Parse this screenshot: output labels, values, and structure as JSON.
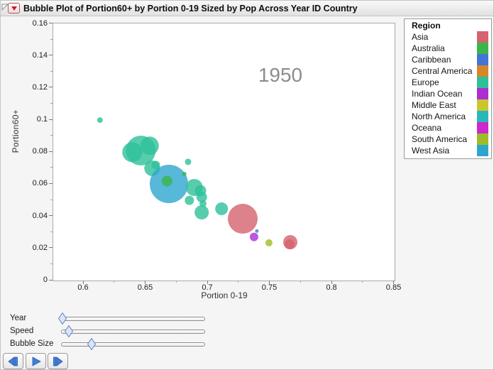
{
  "header": {
    "title": "Bubble Plot of Portion60+ by Portion 0-19 Sized by Pop Across Year ID Country"
  },
  "chart_data": {
    "type": "scatter",
    "subtype": "bubble",
    "frame_label": "1950",
    "xlabel": "Portion 0-19",
    "ylabel": "Portion60+",
    "x_axis": {
      "min": 0.6,
      "max": 0.85,
      "major_values": [
        0.6,
        0.65,
        0.7,
        0.75,
        0.8,
        0.85
      ],
      "major_labels": [
        "0.6",
        "0.65",
        "0.7",
        "0.75",
        "0.8",
        "0.85"
      ],
      "minor_values": [
        0.625,
        0.675,
        0.725,
        0.775,
        0.825
      ]
    },
    "y_axis": {
      "min": 0,
      "max": 0.16,
      "major_values": [
        0,
        0.02,
        0.04,
        0.06,
        0.08,
        0.1,
        0.12,
        0.14,
        0.16
      ],
      "major_labels": [
        "0",
        "0.02",
        "0.04",
        "0.06",
        "0.08",
        "0.1",
        "0.12",
        "0.14",
        "0.16"
      ],
      "minor_values": [
        0.01,
        0.03,
        0.05,
        0.07,
        0.09,
        0.11,
        0.13,
        0.15
      ]
    },
    "bubbles": [
      {
        "region": "Europe",
        "x": 0.613,
        "y": 0.1,
        "r": 4
      },
      {
        "region": "Europe",
        "x": 0.639,
        "y": 0.08,
        "r": 14
      },
      {
        "region": "Europe",
        "x": 0.646,
        "y": 0.081,
        "r": 21
      },
      {
        "region": "Europe",
        "x": 0.653,
        "y": 0.084,
        "r": 13
      },
      {
        "region": "Europe",
        "x": 0.655,
        "y": 0.07,
        "r": 11
      },
      {
        "region": "Europe",
        "x": 0.658,
        "y": 0.072,
        "r": 6
      },
      {
        "region": "Europe",
        "x": 0.684,
        "y": 0.074,
        "r": 4.5
      },
      {
        "region": "West Asia",
        "x": 0.6686,
        "y": 0.0602,
        "r": 27
      },
      {
        "region": "Australia",
        "x": 0.667,
        "y": 0.062,
        "r": 7.5
      },
      {
        "region": "Australia",
        "x": 0.681,
        "y": 0.0664,
        "r": 3
      },
      {
        "region": "Europe",
        "x": 0.689,
        "y": 0.058,
        "r": 12
      },
      {
        "region": "Europe",
        "x": 0.694,
        "y": 0.056,
        "r": 8
      },
      {
        "region": "Europe",
        "x": 0.685,
        "y": 0.05,
        "r": 6.5
      },
      {
        "region": "Europe",
        "x": 0.695,
        "y": 0.052,
        "r": 7.5
      },
      {
        "region": "Europe",
        "x": 0.696,
        "y": 0.048,
        "r": 5
      },
      {
        "region": "Europe",
        "x": 0.695,
        "y": 0.0425,
        "r": 10
      },
      {
        "region": "Europe",
        "x": 0.711,
        "y": 0.0447,
        "r": 9
      },
      {
        "region": "Asia",
        "x": 0.728,
        "y": 0.0385,
        "r": 21
      },
      {
        "region": "Caribbean",
        "x": 0.7394,
        "y": 0.0308,
        "r": 2.5
      },
      {
        "region": "Indian Ocean",
        "x": 0.7371,
        "y": 0.0272,
        "r": 6
      },
      {
        "region": "South America",
        "x": 0.7491,
        "y": 0.0235,
        "r": 5
      },
      {
        "region": "Asia",
        "x": 0.7663,
        "y": 0.0239,
        "r": 10
      },
      {
        "region": "Asia",
        "x": 0.7657,
        "y": 0.0226,
        "r": 7
      }
    ]
  },
  "legend": {
    "title": "Region",
    "items": [
      {
        "label": "Asia",
        "color": "#d5626e"
      },
      {
        "label": "Australia",
        "color": "#3ab54a"
      },
      {
        "label": "Caribbean",
        "color": "#4375d8"
      },
      {
        "label": "Central America",
        "color": "#d78628"
      },
      {
        "label": "Europe",
        "color": "#2ec09a"
      },
      {
        "label": "Indian Ocean",
        "color": "#ab2fd4"
      },
      {
        "label": "Middle East",
        "color": "#cbc52e"
      },
      {
        "label": "North America",
        "color": "#28b8b8"
      },
      {
        "label": "Oceana",
        "color": "#cc28cc"
      },
      {
        "label": "South America",
        "color": "#9cbd28"
      },
      {
        "label": "West Asia",
        "color": "#2da6cf"
      }
    ]
  },
  "controls": {
    "sliders": [
      {
        "label": "Year",
        "fraction": 0.012
      },
      {
        "label": "Speed",
        "fraction": 0.054
      },
      {
        "label": "Bubble Size",
        "fraction": 0.214
      }
    ],
    "buttons": [
      {
        "name": "step-back-button",
        "icon": "step-back-icon"
      },
      {
        "name": "play-button",
        "icon": "play-icon"
      },
      {
        "name": "step-forward-button",
        "icon": "step-forward-icon"
      }
    ],
    "icon_color": "#3f7fd6",
    "icon_edge": "#2a5bb0"
  }
}
